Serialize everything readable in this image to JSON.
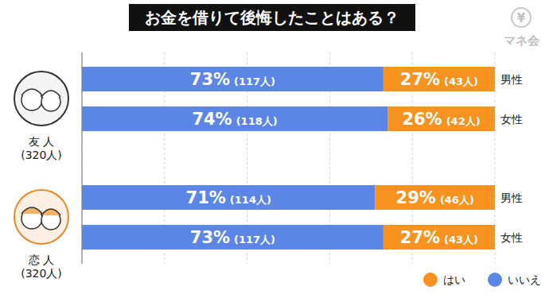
{
  "chart_data": {
    "type": "bar",
    "orientation": "horizontal",
    "stacked": true,
    "data_labels": true,
    "title": "お金を借りて後悔したことはある？",
    "categories": [
      "男性",
      "女性",
      "男性",
      "女性"
    ],
    "groups": [
      {
        "label": "友 人",
        "total_label": "(320人)"
      },
      {
        "label": "恋 人",
        "total_label": "(320人)"
      }
    ],
    "series": [
      {
        "name": "いいえ",
        "color": "#5b86e5",
        "values": [
          73,
          74,
          71,
          73
        ],
        "value_labels": [
          "73%",
          "74%",
          "71%",
          "73%"
        ],
        "count_labels": [
          "(117人)",
          "(118人)",
          "(114人)",
          "(117人)"
        ]
      },
      {
        "name": "はい",
        "color": "#f7931e",
        "values": [
          27,
          26,
          29,
          27
        ],
        "value_labels": [
          "27%",
          "26%",
          "29%",
          "27%"
        ],
        "count_labels": [
          "(43人)",
          "(42人)",
          "(46人)",
          "(43人)"
        ]
      }
    ],
    "xlim": [
      0,
      100
    ],
    "xticks": [
      0,
      20,
      40,
      60,
      80,
      100
    ],
    "grid": true,
    "tick_labels": false,
    "legend": "bottom-right",
    "logo": {
      "symbol": "¥",
      "text": "マネ会"
    }
  }
}
